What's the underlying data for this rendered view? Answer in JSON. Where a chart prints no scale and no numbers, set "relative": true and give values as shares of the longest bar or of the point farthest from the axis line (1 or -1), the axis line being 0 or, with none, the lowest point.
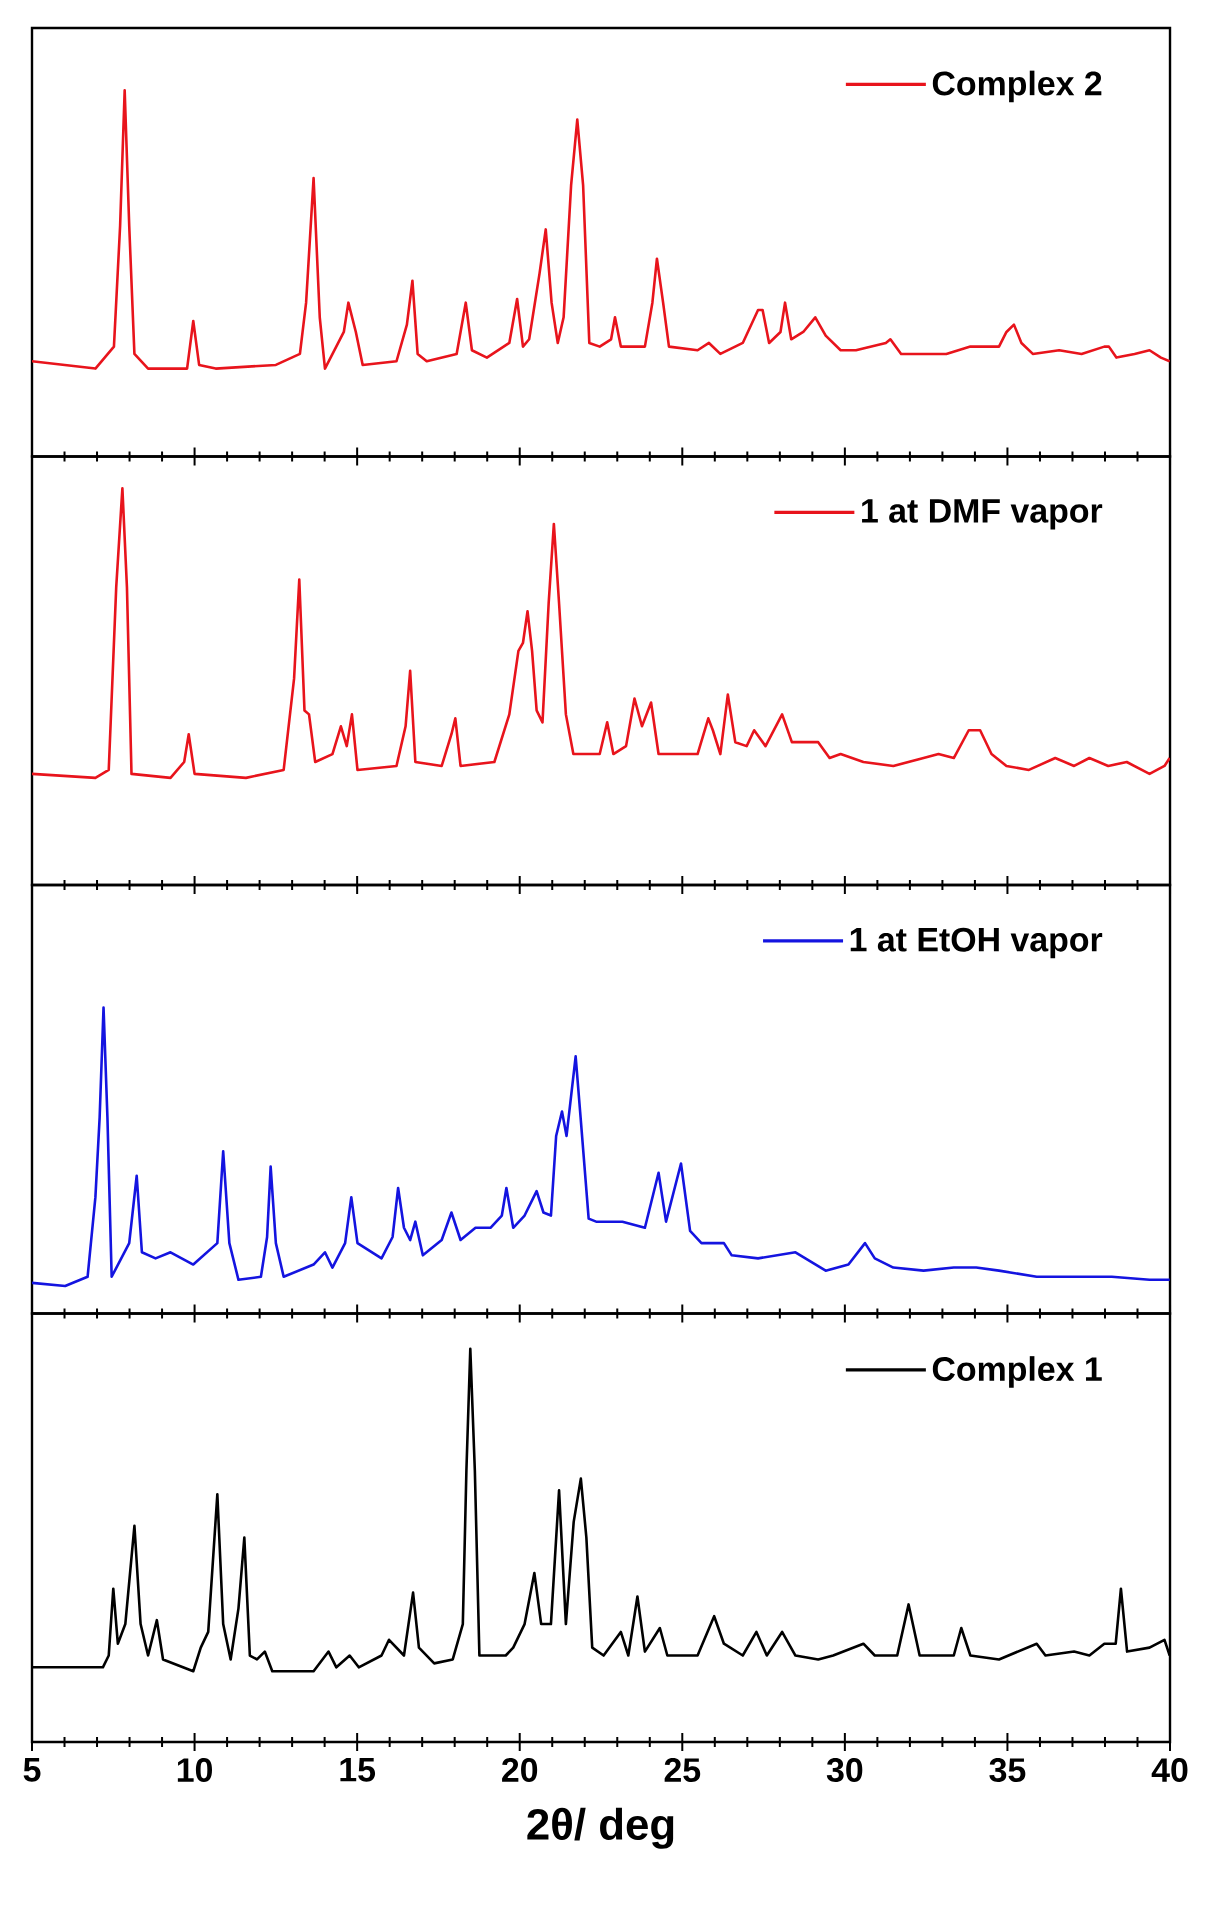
{
  "chart_data": [
    {
      "type": "line",
      "relative": true,
      "xlim": [
        5,
        40
      ],
      "xticks": [
        5,
        10,
        15,
        20,
        25,
        30,
        35,
        40
      ],
      "tick_labels": false,
      "legend": "top right",
      "series": [
        {
          "name": "Complex 2",
          "color": "#e8141c",
          "x": [
            5.0,
            6.95,
            7.52,
            7.71,
            7.85,
            7.99,
            8.15,
            8.57,
            9.77,
            9.96,
            10.14,
            10.65,
            12.5,
            13.24,
            13.43,
            13.66,
            13.85,
            14.01,
            14.59,
            14.73,
            14.96,
            15.17,
            16.21,
            16.53,
            16.7,
            16.86,
            17.14,
            18.06,
            18.34,
            18.53,
            18.99,
            19.68,
            19.92,
            20.1,
            20.29,
            20.61,
            20.8,
            20.98,
            21.17,
            21.35,
            21.58,
            21.77,
            21.95,
            22.14,
            22.46,
            22.81,
            22.93,
            23.11,
            23.85,
            24.08,
            24.22,
            24.41,
            24.59,
            25.47,
            25.82,
            26.17,
            26.86,
            27.33,
            27.47,
            27.67,
            28.02,
            28.16,
            28.35,
            28.72,
            29.09,
            29.41,
            29.87,
            30.34,
            31.26,
            31.4,
            31.73,
            33.12,
            33.86,
            34.74,
            34.97,
            35.2,
            35.43,
            35.78,
            36.59,
            37.28,
            37.98,
            38.12,
            38.35,
            38.91,
            39.37,
            39.72,
            39.99
          ],
          "values": [
            0.26,
            0.24,
            0.3,
            0.63,
            1.0,
            0.63,
            0.28,
            0.24,
            0.24,
            0.37,
            0.25,
            0.24,
            0.25,
            0.28,
            0.42,
            0.76,
            0.38,
            0.24,
            0.34,
            0.42,
            0.34,
            0.25,
            0.26,
            0.36,
            0.48,
            0.28,
            0.26,
            0.28,
            0.42,
            0.29,
            0.27,
            0.31,
            0.43,
            0.3,
            0.32,
            0.5,
            0.62,
            0.42,
            0.31,
            0.38,
            0.74,
            0.92,
            0.74,
            0.31,
            0.3,
            0.32,
            0.38,
            0.3,
            0.3,
            0.42,
            0.54,
            0.42,
            0.3,
            0.29,
            0.31,
            0.28,
            0.31,
            0.4,
            0.4,
            0.31,
            0.34,
            0.42,
            0.32,
            0.34,
            0.38,
            0.33,
            0.29,
            0.29,
            0.31,
            0.32,
            0.28,
            0.28,
            0.3,
            0.3,
            0.34,
            0.36,
            0.31,
            0.28,
            0.29,
            0.28,
            0.3,
            0.3,
            0.27,
            0.28,
            0.29,
            0.27,
            0.26
          ]
        }
      ]
    },
    {
      "type": "line",
      "relative": true,
      "xlim": [
        5,
        40
      ],
      "xticks": [
        5,
        10,
        15,
        20,
        25,
        30,
        35,
        40
      ],
      "tick_labels": false,
      "legend": "top right",
      "series": [
        {
          "name": "1 at DMF vapor",
          "color": "#e8141c",
          "x": [
            5.0,
            6.95,
            7.36,
            7.59,
            7.78,
            7.92,
            8.06,
            9.26,
            9.68,
            9.82,
            10.0,
            11.58,
            12.74,
            13.06,
            13.22,
            13.38,
            13.52,
            13.71,
            14.24,
            14.5,
            14.68,
            14.84,
            15.01,
            16.21,
            16.49,
            16.63,
            16.79,
            17.6,
            17.9,
            18.02,
            18.18,
            19.22,
            19.68,
            19.96,
            20.1,
            20.24,
            20.38,
            20.52,
            20.7,
            20.89,
            21.05,
            21.21,
            21.42,
            21.65,
            22.46,
            22.69,
            22.88,
            23.27,
            23.53,
            23.76,
            24.04,
            24.27,
            25.01,
            25.47,
            25.8,
            25.94,
            26.17,
            26.4,
            26.63,
            26.98,
            27.21,
            27.56,
            28.07,
            28.37,
            29.18,
            29.53,
            29.87,
            30.57,
            31.49,
            32.42,
            32.88,
            33.35,
            33.81,
            34.16,
            34.51,
            34.97,
            35.66,
            36.47,
            37.05,
            37.52,
            38.1,
            38.67,
            39.37,
            39.83,
            39.99
          ],
          "values": [
            0.28,
            0.27,
            0.29,
            0.75,
            1.0,
            0.75,
            0.28,
            0.27,
            0.31,
            0.38,
            0.28,
            0.27,
            0.29,
            0.52,
            0.77,
            0.44,
            0.43,
            0.31,
            0.33,
            0.4,
            0.35,
            0.43,
            0.29,
            0.3,
            0.4,
            0.54,
            0.31,
            0.3,
            0.38,
            0.42,
            0.3,
            0.31,
            0.43,
            0.59,
            0.61,
            0.69,
            0.59,
            0.44,
            0.41,
            0.71,
            0.91,
            0.71,
            0.43,
            0.33,
            0.33,
            0.41,
            0.33,
            0.35,
            0.47,
            0.4,
            0.46,
            0.33,
            0.33,
            0.33,
            0.42,
            0.39,
            0.33,
            0.48,
            0.36,
            0.35,
            0.39,
            0.35,
            0.43,
            0.36,
            0.36,
            0.32,
            0.33,
            0.31,
            0.3,
            0.32,
            0.33,
            0.32,
            0.39,
            0.39,
            0.33,
            0.3,
            0.29,
            0.32,
            0.3,
            0.32,
            0.3,
            0.31,
            0.28,
            0.3,
            0.32
          ]
        }
      ]
    },
    {
      "type": "line",
      "relative": true,
      "xlim": [
        5,
        40
      ],
      "xticks": [
        5,
        10,
        15,
        20,
        25,
        30,
        35,
        40
      ],
      "tick_labels": false,
      "legend": "top right",
      "series": [
        {
          "name": "1 at EtOH vapor",
          "color": "#1414e0",
          "x": [
            5.0,
            6.02,
            6.71,
            6.95,
            7.08,
            7.2,
            7.32,
            7.45,
            7.99,
            8.22,
            8.38,
            8.8,
            9.26,
            9.96,
            10.7,
            10.88,
            11.07,
            11.35,
            12.04,
            12.23,
            12.34,
            12.5,
            12.74,
            13.66,
            14.01,
            14.24,
            14.63,
            14.82,
            15.01,
            15.75,
            16.09,
            16.26,
            16.44,
            16.63,
            16.79,
            17.02,
            17.6,
            17.9,
            18.18,
            18.64,
            19.1,
            19.45,
            19.59,
            19.8,
            20.15,
            20.52,
            20.73,
            20.96,
            21.12,
            21.3,
            21.44,
            21.72,
            21.88,
            22.12,
            22.35,
            23.16,
            23.85,
            24.27,
            24.5,
            24.96,
            25.24,
            25.59,
            26.28,
            26.52,
            27.33,
            28.48,
            29.41,
            30.11,
            30.62,
            30.92,
            31.49,
            32.42,
            33.35,
            34.04,
            34.74,
            35.9,
            37.05,
            38.21,
            39.37,
            39.99
          ],
          "values": [
            0.1,
            0.09,
            0.12,
            0.38,
            0.64,
            1.0,
            0.64,
            0.12,
            0.23,
            0.45,
            0.2,
            0.18,
            0.2,
            0.16,
            0.23,
            0.53,
            0.23,
            0.11,
            0.12,
            0.25,
            0.48,
            0.23,
            0.12,
            0.16,
            0.2,
            0.15,
            0.23,
            0.38,
            0.23,
            0.18,
            0.25,
            0.41,
            0.28,
            0.24,
            0.3,
            0.19,
            0.24,
            0.33,
            0.24,
            0.28,
            0.28,
            0.32,
            0.41,
            0.28,
            0.32,
            0.4,
            0.33,
            0.32,
            0.58,
            0.66,
            0.58,
            0.84,
            0.63,
            0.31,
            0.3,
            0.3,
            0.28,
            0.46,
            0.3,
            0.49,
            0.27,
            0.23,
            0.23,
            0.19,
            0.18,
            0.2,
            0.14,
            0.16,
            0.23,
            0.18,
            0.15,
            0.14,
            0.15,
            0.15,
            0.14,
            0.12,
            0.12,
            0.12,
            0.11,
            0.11
          ]
        }
      ]
    },
    {
      "type": "line",
      "relative": true,
      "xlim": [
        5,
        40
      ],
      "xticks": [
        5,
        10,
        15,
        20,
        25,
        30,
        35,
        40
      ],
      "tick_labels": "x",
      "legend": "top right",
      "xlabel": "2θ/ deg",
      "series": [
        {
          "name": "Complex 1",
          "color": "#000000",
          "x": [
            5.0,
            7.18,
            7.36,
            7.5,
            7.64,
            7.87,
            8.15,
            8.34,
            8.57,
            8.84,
            9.03,
            9.96,
            10.19,
            10.42,
            10.7,
            10.88,
            11.11,
            11.35,
            11.53,
            11.7,
            11.92,
            12.16,
            12.39,
            13.66,
            14.12,
            14.36,
            14.77,
            15.05,
            15.75,
            15.98,
            16.44,
            16.72,
            16.9,
            17.37,
            17.94,
            18.25,
            18.36,
            18.48,
            18.62,
            18.76,
            19.57,
            19.8,
            20.15,
            20.45,
            20.66,
            20.96,
            21.21,
            21.42,
            21.66,
            21.88,
            22.05,
            22.23,
            22.58,
            23.11,
            23.34,
            23.62,
            23.85,
            24.31,
            24.54,
            25.47,
            25.98,
            26.28,
            26.86,
            27.28,
            27.6,
            28.07,
            28.48,
            29.18,
            29.64,
            30.57,
            30.92,
            31.61,
            31.96,
            32.3,
            33.35,
            33.58,
            33.86,
            34.74,
            35.9,
            36.17,
            37.05,
            37.52,
            37.98,
            38.33,
            38.49,
            38.68,
            39.37,
            39.83,
            39.99
          ],
          "values": [
            0.19,
            0.19,
            0.22,
            0.39,
            0.25,
            0.3,
            0.55,
            0.3,
            0.22,
            0.31,
            0.21,
            0.18,
            0.24,
            0.28,
            0.63,
            0.3,
            0.21,
            0.34,
            0.52,
            0.22,
            0.21,
            0.23,
            0.18,
            0.18,
            0.23,
            0.19,
            0.22,
            0.19,
            0.22,
            0.26,
            0.22,
            0.38,
            0.24,
            0.2,
            0.21,
            0.3,
            0.69,
            1.0,
            0.69,
            0.22,
            0.22,
            0.24,
            0.3,
            0.43,
            0.3,
            0.3,
            0.64,
            0.3,
            0.56,
            0.67,
            0.52,
            0.24,
            0.22,
            0.28,
            0.22,
            0.37,
            0.23,
            0.29,
            0.22,
            0.22,
            0.32,
            0.25,
            0.22,
            0.28,
            0.22,
            0.28,
            0.22,
            0.21,
            0.22,
            0.25,
            0.22,
            0.22,
            0.35,
            0.22,
            0.22,
            0.29,
            0.22,
            0.21,
            0.25,
            0.22,
            0.23,
            0.22,
            0.25,
            0.25,
            0.39,
            0.23,
            0.24,
            0.26,
            0.22
          ]
        }
      ]
    }
  ]
}
